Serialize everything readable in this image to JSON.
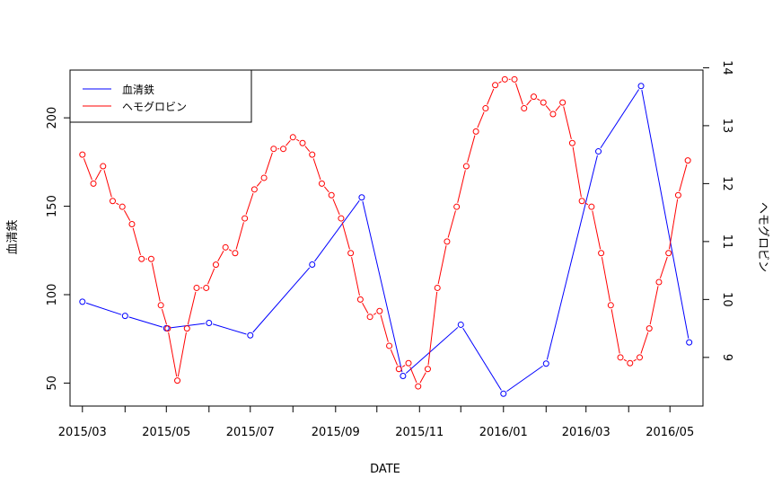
{
  "chart_data": {
    "type": "line",
    "xlabel": "DATE",
    "ylabel": "血清鉄",
    "y2label": "ヘモグロビン",
    "xlim": [
      "2015-02-20",
      "2016-05-25"
    ],
    "x_ticks": [
      "2015-03-01",
      "2015-04-01",
      "2015-05-01",
      "2015-06-01",
      "2015-07-01",
      "2015-08-01",
      "2015-09-01",
      "2015-10-01",
      "2015-11-01",
      "2015-12-01",
      "2016-01-01",
      "2016-02-01",
      "2016-03-01",
      "2016-04-01",
      "2016-05-01"
    ],
    "x_tick_labels": [
      "2015/03",
      "2015/05",
      "2015/07",
      "2015/09",
      "2015/11",
      "2016/01",
      "2016/03",
      "2016/05"
    ],
    "x_tick_label_dates": [
      "2015-03-01",
      "2015-05-01",
      "2015-07-01",
      "2015-09-01",
      "2015-11-01",
      "2016-01-01",
      "2016-03-01",
      "2016-05-01"
    ],
    "ylim": [
      37,
      227
    ],
    "y_ticks": [
      50,
      100,
      150,
      200
    ],
    "y2lim": [
      8.16,
      13.96
    ],
    "y2_ticks": [
      9,
      10,
      11,
      12,
      13,
      14
    ],
    "legend": {
      "position": "top-left",
      "entries": [
        "血清鉄",
        "ヘモグロビン"
      ]
    },
    "series": [
      {
        "name": "血清鉄",
        "axis": "left",
        "color": "#0000ff",
        "points": [
          [
            "2015-03-01",
            96
          ],
          [
            "2015-04-01",
            88
          ],
          [
            "2015-05-01",
            81
          ],
          [
            "2015-06-01",
            84
          ],
          [
            "2015-07-01",
            77
          ],
          [
            "2015-08-15",
            117
          ],
          [
            "2015-09-20",
            155
          ],
          [
            "2015-10-20",
            54
          ],
          [
            "2015-12-01",
            83
          ],
          [
            "2016-01-01",
            44
          ],
          [
            "2016-02-01",
            61
          ],
          [
            "2016-03-10",
            181
          ],
          [
            "2016-04-10",
            218
          ],
          [
            "2016-05-15",
            73
          ]
        ]
      },
      {
        "name": "ヘモグロビン",
        "axis": "right",
        "color": "#ff0000",
        "points": [
          [
            "2015-03-01",
            12.5
          ],
          [
            "2015-03-09",
            12.0
          ],
          [
            "2015-03-16",
            12.3
          ],
          [
            "2015-03-23",
            11.7
          ],
          [
            "2015-03-30",
            11.6
          ],
          [
            "2015-04-06",
            11.3
          ],
          [
            "2015-04-13",
            10.7
          ],
          [
            "2015-04-20",
            10.7
          ],
          [
            "2015-04-27",
            9.9
          ],
          [
            "2015-05-02",
            9.5
          ],
          [
            "2015-05-09",
            8.6
          ],
          [
            "2015-05-16",
            9.5
          ],
          [
            "2015-05-23",
            10.2
          ],
          [
            "2015-05-30",
            10.2
          ],
          [
            "2015-06-06",
            10.6
          ],
          [
            "2015-06-13",
            10.9
          ],
          [
            "2015-06-20",
            10.8
          ],
          [
            "2015-06-27",
            11.4
          ],
          [
            "2015-07-04",
            11.9
          ],
          [
            "2015-07-11",
            12.1
          ],
          [
            "2015-07-18",
            12.6
          ],
          [
            "2015-07-25",
            12.6
          ],
          [
            "2015-08-01",
            12.8
          ],
          [
            "2015-08-08",
            12.7
          ],
          [
            "2015-08-15",
            12.5
          ],
          [
            "2015-08-22",
            12.0
          ],
          [
            "2015-08-29",
            11.8
          ],
          [
            "2015-09-05",
            11.4
          ],
          [
            "2015-09-12",
            10.8
          ],
          [
            "2015-09-19",
            10.0
          ],
          [
            "2015-09-26",
            9.7
          ],
          [
            "2015-10-03",
            9.8
          ],
          [
            "2015-10-10",
            9.2
          ],
          [
            "2015-10-17",
            8.8
          ],
          [
            "2015-10-24",
            8.9
          ],
          [
            "2015-10-31",
            8.5
          ],
          [
            "2015-11-07",
            8.8
          ],
          [
            "2015-11-14",
            10.2
          ],
          [
            "2015-11-21",
            11.0
          ],
          [
            "2015-11-28",
            11.6
          ],
          [
            "2015-12-05",
            12.3
          ],
          [
            "2015-12-12",
            12.9
          ],
          [
            "2015-12-19",
            13.3
          ],
          [
            "2015-12-26",
            13.7
          ],
          [
            "2016-01-02",
            13.8
          ],
          [
            "2016-01-09",
            13.8
          ],
          [
            "2016-01-16",
            13.3
          ],
          [
            "2016-01-23",
            13.5
          ],
          [
            "2016-01-30",
            13.4
          ],
          [
            "2016-02-06",
            13.2
          ],
          [
            "2016-02-13",
            13.4
          ],
          [
            "2016-02-20",
            12.7
          ],
          [
            "2016-02-27",
            11.7
          ],
          [
            "2016-03-05",
            11.6
          ],
          [
            "2016-03-12",
            10.8
          ],
          [
            "2016-03-19",
            9.9
          ],
          [
            "2016-03-26",
            9.0
          ],
          [
            "2016-04-02",
            8.9
          ],
          [
            "2016-04-09",
            9.0
          ],
          [
            "2016-04-16",
            9.5
          ],
          [
            "2016-04-23",
            10.3
          ],
          [
            "2016-04-30",
            10.8
          ],
          [
            "2016-05-07",
            11.8
          ],
          [
            "2016-05-14",
            12.4
          ]
        ]
      }
    ]
  }
}
